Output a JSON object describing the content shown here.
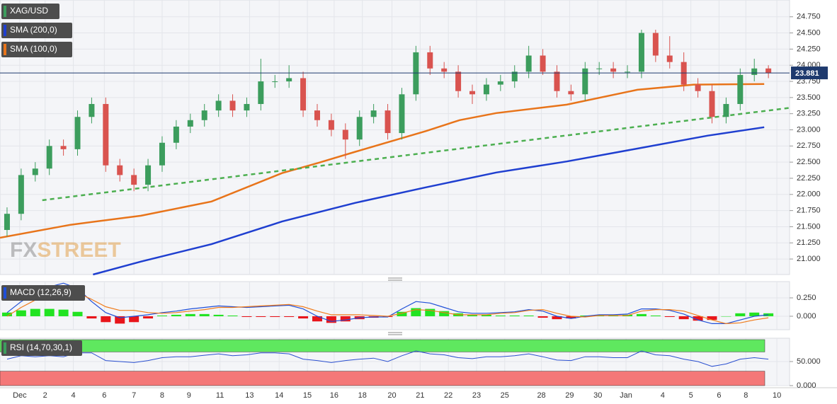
{
  "chart_data": [
    {
      "type": "candlestick",
      "symbol": "XAG/USD",
      "watermark": [
        "FX",
        "STREET"
      ],
      "up_color": "#3c9d5d",
      "down_color": "#d9534f",
      "xlim": [
        0,
        28
      ],
      "ylim": [
        20.76,
        25.01
      ],
      "yticks": [
        {
          "value": 21.0,
          "label": "21.000"
        },
        {
          "value": 21.25,
          "label": "21.250"
        },
        {
          "value": 21.5,
          "label": "21.500"
        },
        {
          "value": 21.75,
          "label": "21.750"
        },
        {
          "value": 22.0,
          "label": "22.000"
        },
        {
          "value": 22.25,
          "label": "22.250"
        },
        {
          "value": 22.5,
          "label": "22.500"
        },
        {
          "value": 22.75,
          "label": "22.750"
        },
        {
          "value": 23.0,
          "label": "23.000"
        },
        {
          "value": 23.25,
          "label": "23.250"
        },
        {
          "value": 23.5,
          "label": "23.500"
        },
        {
          "value": 23.75,
          "label": "23.750"
        },
        {
          "value": 24.0,
          "label": "24.000"
        },
        {
          "value": 24.25,
          "label": "24.250"
        },
        {
          "value": 24.5,
          "label": "24.500"
        },
        {
          "value": 24.75,
          "label": "24.750"
        }
      ],
      "last_price": 23.881,
      "last_price_color": "#1e3a6e",
      "x": [
        0.25,
        0.75,
        1.25,
        1.75,
        2.25,
        2.75,
        3.25,
        3.75,
        4.25,
        4.75,
        5.25,
        5.75,
        6.25,
        6.75,
        7.25,
        7.75,
        8.25,
        8.75,
        9.25,
        9.75,
        10.25,
        10.75,
        11.25,
        11.75,
        12.25,
        12.75,
        13.25,
        13.75,
        14.25,
        14.75,
        15.25,
        15.75,
        16.25,
        16.75,
        17.25,
        17.75,
        18.25,
        18.75,
        19.25,
        19.75,
        20.25,
        20.75,
        21.25,
        21.75,
        22.25,
        22.75,
        23.25,
        23.75,
        24.25,
        24.75,
        25.25,
        25.75,
        26.25,
        26.75,
        27.25
      ],
      "open": [
        21.45,
        21.7,
        22.3,
        22.4,
        22.75,
        22.7,
        23.2,
        23.4,
        22.45,
        22.3,
        22.15,
        22.45,
        22.8,
        23.05,
        23.15,
        23.3,
        23.45,
        23.3,
        23.4,
        23.75,
        23.75,
        23.8,
        23.3,
        23.15,
        23.0,
        22.85,
        23.2,
        23.3,
        22.95,
        23.55,
        24.2,
        23.95,
        23.9,
        23.6,
        23.55,
        23.7,
        23.75,
        23.9,
        24.15,
        23.9,
        23.6,
        23.55,
        23.95,
        23.95,
        23.9,
        23.9,
        24.5,
        24.15,
        24.05,
        23.7,
        23.6,
        23.2,
        23.4,
        23.85,
        23.95
      ],
      "high": [
        21.8,
        22.4,
        22.5,
        22.85,
        22.85,
        23.3,
        23.5,
        23.5,
        22.55,
        22.4,
        22.55,
        22.9,
        23.15,
        23.25,
        23.4,
        23.55,
        23.55,
        23.5,
        24.1,
        23.85,
        24.0,
        23.9,
        23.4,
        23.25,
        23.1,
        23.3,
        23.4,
        23.4,
        23.65,
        24.3,
        24.3,
        24.05,
        24.0,
        23.7,
        23.8,
        23.85,
        24.0,
        24.3,
        24.25,
        24.0,
        23.7,
        24.05,
        24.05,
        24.05,
        24.0,
        24.55,
        24.55,
        24.45,
        24.2,
        23.8,
        23.7,
        23.5,
        23.95,
        24.1,
        24.0
      ],
      "low": [
        21.35,
        21.6,
        22.2,
        22.3,
        22.6,
        22.6,
        23.1,
        22.35,
        22.2,
        22.05,
        22.05,
        22.35,
        22.7,
        22.95,
        23.05,
        23.2,
        23.2,
        23.2,
        23.3,
        23.65,
        23.65,
        23.2,
        23.05,
        22.9,
        22.55,
        22.75,
        23.1,
        22.85,
        22.85,
        23.45,
        23.85,
        23.8,
        23.5,
        23.4,
        23.45,
        23.6,
        23.65,
        23.8,
        23.85,
        23.5,
        23.45,
        23.45,
        23.85,
        23.8,
        23.8,
        23.8,
        24.05,
        23.95,
        23.6,
        23.5,
        23.1,
        23.1,
        23.3,
        23.75,
        23.8
      ],
      "close": [
        21.7,
        22.3,
        22.4,
        22.75,
        22.7,
        23.2,
        23.4,
        22.45,
        22.3,
        22.15,
        22.45,
        22.8,
        23.05,
        23.15,
        23.3,
        23.45,
        23.3,
        23.4,
        23.75,
        23.75,
        23.8,
        23.3,
        23.15,
        23.0,
        22.85,
        23.2,
        23.3,
        22.95,
        23.55,
        24.2,
        23.95,
        23.9,
        23.6,
        23.55,
        23.7,
        23.75,
        23.9,
        24.15,
        23.9,
        23.6,
        23.55,
        23.95,
        23.95,
        23.9,
        23.9,
        24.5,
        24.15,
        24.05,
        23.7,
        23.6,
        23.2,
        23.4,
        23.85,
        23.95,
        23.88
      ],
      "series": [
        {
          "name": "SMA (200,0)",
          "color": "#1f3fd0",
          "x": [
            3.3,
            5,
            7.5,
            10,
            12.6,
            15.1,
            17.6,
            20.1,
            22.6,
            25.1,
            27.1
          ],
          "values": [
            20.76,
            20.96,
            21.23,
            21.58,
            21.87,
            22.11,
            22.34,
            22.51,
            22.71,
            22.91,
            23.04
          ]
        },
        {
          "name": "SMA (100,0)",
          "color": "#e8741a",
          "x": [
            0,
            2.5,
            5,
            7.5,
            10,
            11.3,
            12.6,
            15.1,
            16.3,
            17.6,
            20.1,
            22.6,
            24.6,
            27.1
          ],
          "values": [
            21.33,
            21.53,
            21.67,
            21.89,
            22.33,
            22.49,
            22.66,
            22.98,
            23.15,
            23.26,
            23.39,
            23.62,
            23.7,
            23.71
          ]
        }
      ],
      "trendline": {
        "color": "#4caf50",
        "x": [
          1.5,
          28
        ],
        "values": [
          21.91,
          23.34
        ]
      }
    },
    {
      "type": "macd",
      "label": "MACD (12,26,9)",
      "xlim": [
        0,
        28
      ],
      "ylim": [
        -0.183,
        0.471
      ],
      "yticks": [
        {
          "value": 0.25,
          "label": "0.250"
        },
        {
          "value": 0,
          "label": "0.000"
        }
      ],
      "positive_color": "#22e322",
      "negative_color": "#e8151b",
      "x": [
        0.25,
        0.75,
        1.25,
        1.75,
        2.25,
        2.75,
        3.25,
        3.75,
        4.25,
        4.75,
        5.25,
        5.75,
        6.25,
        6.75,
        7.25,
        7.75,
        8.25,
        8.75,
        9.25,
        9.75,
        10.25,
        10.75,
        11.25,
        11.75,
        12.25,
        12.75,
        13.25,
        13.75,
        14.25,
        14.75,
        15.25,
        15.75,
        16.25,
        16.75,
        17.25,
        17.75,
        18.25,
        18.75,
        19.25,
        19.75,
        20.25,
        20.75,
        21.25,
        21.75,
        22.25,
        22.75,
        23.25,
        23.75,
        24.25,
        24.75,
        25.25,
        25.75,
        26.25,
        26.75,
        27.25
      ],
      "histogram": [
        0.05,
        0.08,
        0.1,
        0.1,
        0.09,
        0.06,
        -0.03,
        -0.08,
        -0.1,
        -0.08,
        -0.03,
        0.01,
        0.02,
        0.03,
        0.03,
        0.02,
        0.01,
        -0.01,
        -0.01,
        -0.01,
        -0.01,
        -0.03,
        -0.07,
        -0.09,
        -0.07,
        -0.04,
        -0.02,
        -0.01,
        0.06,
        0.11,
        0.1,
        0.07,
        0.04,
        0.02,
        0.02,
        0.01,
        0.01,
        0.01,
        -0.02,
        -0.04,
        -0.03,
        0.01,
        0.01,
        0.01,
        0.02,
        0.03,
        0.01,
        -0.01,
        -0.04,
        -0.06,
        -0.05,
        0.0,
        0.04,
        0.05,
        0.04
      ],
      "series": [
        {
          "color": "#1f4fd8",
          "values": [
            0.05,
            0.2,
            0.32,
            0.4,
            0.45,
            0.38,
            0.2,
            0.05,
            -0.02,
            0.0,
            0.02,
            0.05,
            0.07,
            0.1,
            0.12,
            0.14,
            0.13,
            0.12,
            0.13,
            0.14,
            0.15,
            0.1,
            0.0,
            -0.07,
            -0.05,
            -0.02,
            -0.01,
            -0.01,
            0.1,
            0.2,
            0.18,
            0.12,
            0.06,
            0.04,
            0.04,
            0.05,
            0.06,
            0.09,
            0.07,
            0.0,
            -0.03,
            0.0,
            0.02,
            0.02,
            0.03,
            0.1,
            0.1,
            0.08,
            0.03,
            -0.05,
            -0.1,
            -0.1,
            -0.05,
            0.0,
            0.02
          ]
        },
        {
          "color": "#f07c1c",
          "values": [
            0.0,
            0.12,
            0.22,
            0.3,
            0.36,
            0.32,
            0.23,
            0.13,
            0.08,
            0.08,
            0.05,
            0.04,
            0.05,
            0.07,
            0.09,
            0.12,
            0.12,
            0.13,
            0.14,
            0.15,
            0.16,
            0.13,
            0.07,
            0.02,
            0.02,
            0.02,
            0.01,
            0.0,
            0.04,
            0.09,
            0.08,
            0.05,
            0.02,
            0.02,
            0.02,
            0.04,
            0.05,
            0.08,
            0.09,
            0.04,
            0.0,
            -0.01,
            0.01,
            0.01,
            0.01,
            0.07,
            0.09,
            0.09,
            0.07,
            0.01,
            -0.05,
            -0.1,
            -0.09,
            -0.05,
            -0.02
          ]
        }
      ]
    },
    {
      "type": "rsi",
      "label": "RSI (14,70,30,1)",
      "xlim": [
        0,
        28
      ],
      "ylim": [
        0,
        98.5
      ],
      "overbought": 70,
      "oversold": 30,
      "overbought_color": "#5fe85f",
      "oversold_color": "#f47878",
      "color": "#2a4fd0",
      "yticks": [
        {
          "value": 50,
          "label": "50.000"
        },
        {
          "value": 0,
          "label": "0.000"
        }
      ],
      "x": [
        0.25,
        0.75,
        1.25,
        1.75,
        2.25,
        2.75,
        3.25,
        3.75,
        4.25,
        4.75,
        5.25,
        5.75,
        6.25,
        6.75,
        7.25,
        7.75,
        8.25,
        8.75,
        9.25,
        9.75,
        10.25,
        10.75,
        11.25,
        11.75,
        12.25,
        12.75,
        13.25,
        13.75,
        14.25,
        14.75,
        15.25,
        15.75,
        16.25,
        16.75,
        17.25,
        17.75,
        18.25,
        18.75,
        19.25,
        19.75,
        20.25,
        20.75,
        21.25,
        21.75,
        22.25,
        22.75,
        23.25,
        23.75,
        24.25,
        24.75,
        25.25,
        25.75,
        26.25,
        26.75,
        27.25
      ],
      "values": [
        55,
        62,
        60,
        62,
        60,
        68,
        68,
        52,
        50,
        48,
        52,
        58,
        60,
        60,
        63,
        66,
        62,
        64,
        68,
        68,
        66,
        55,
        52,
        48,
        52,
        55,
        57,
        50,
        62,
        72,
        66,
        64,
        58,
        56,
        60,
        60,
        62,
        66,
        60,
        53,
        52,
        60,
        60,
        58,
        58,
        72,
        64,
        62,
        55,
        50,
        40,
        45,
        55,
        58,
        55
      ],
      "xticks": [
        {
          "value": 0.7,
          "label": "Dec"
        },
        {
          "value": 1.6,
          "label": "2"
        },
        {
          "value": 2.6,
          "label": "4"
        },
        {
          "value": 3.7,
          "label": "6"
        },
        {
          "value": 4.75,
          "label": "7"
        },
        {
          "value": 5.75,
          "label": "8"
        },
        {
          "value": 6.7,
          "label": "9"
        },
        {
          "value": 7.8,
          "label": "11"
        },
        {
          "value": 8.85,
          "label": "13"
        },
        {
          "value": 9.9,
          "label": "14"
        },
        {
          "value": 10.9,
          "label": "15"
        },
        {
          "value": 11.85,
          "label": "16"
        },
        {
          "value": 12.85,
          "label": "18"
        },
        {
          "value": 13.9,
          "label": "20"
        },
        {
          "value": 14.9,
          "label": "21"
        },
        {
          "value": 15.9,
          "label": "22"
        },
        {
          "value": 16.9,
          "label": "23"
        },
        {
          "value": 17.9,
          "label": "25"
        },
        {
          "value": 19.2,
          "label": "28"
        },
        {
          "value": 20.2,
          "label": "29"
        },
        {
          "value": 21.2,
          "label": "30"
        },
        {
          "value": 22.2,
          "label": "Jan"
        },
        {
          "value": 23.5,
          "label": "4"
        },
        {
          "value": 24.5,
          "label": "5"
        },
        {
          "value": 25.5,
          "label": "6"
        },
        {
          "value": 26.45,
          "label": "8"
        },
        {
          "value": 27.55,
          "label": "10"
        }
      ]
    }
  ]
}
